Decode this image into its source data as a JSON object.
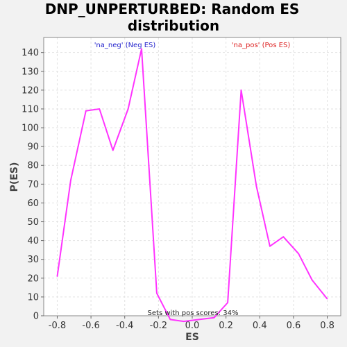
{
  "chart_data": {
    "type": "line",
    "title_line1": "DNP_UNPERTURBED: Random ES",
    "title_line2": "distribution",
    "xlabel": "ES",
    "ylabel": "P(ES)",
    "xlim": [
      -0.88,
      0.88
    ],
    "ylim": [
      0,
      148
    ],
    "x_ticks": [
      -0.8,
      -0.6,
      -0.4,
      -0.2,
      0.0,
      0.2,
      0.4,
      0.6,
      0.8
    ],
    "x_tick_labels": [
      "-0.8",
      "-0.6",
      "-0.4",
      "-0.2",
      "0.0",
      "0.2",
      "0.4",
      "0.6",
      "0.8"
    ],
    "y_ticks": [
      0,
      10,
      20,
      30,
      40,
      50,
      60,
      70,
      80,
      90,
      100,
      110,
      120,
      130,
      140
    ],
    "y_tick_labels": [
      "0",
      "10",
      "20",
      "30",
      "40",
      "50",
      "60",
      "70",
      "80",
      "90",
      "100",
      "110",
      "120",
      "130",
      "140"
    ],
    "grid": true,
    "series": [
      {
        "color": "#ff33ff",
        "x": [
          -0.8,
          -0.72,
          -0.63,
          -0.55,
          -0.47,
          -0.38,
          -0.3,
          -0.21,
          -0.13,
          -0.05,
          0.04,
          0.13,
          0.21,
          0.29,
          0.38,
          0.46,
          0.54,
          0.63,
          0.71,
          0.8
        ],
        "y": [
          21,
          72,
          109,
          110,
          88,
          110,
          142,
          12,
          -2,
          -3,
          -2,
          -1,
          7,
          120,
          69,
          37,
          42,
          33,
          19,
          9
        ]
      }
    ],
    "annotations": {
      "neg": {
        "text": "'na_neg' (Neg ES)",
        "color": "#2222cc"
      },
      "pos": {
        "text": "'na_pos' (Pos ES)",
        "color": "#dd2222"
      },
      "footer": {
        "text": "Sets with pos scores: 34%",
        "color": "#222222"
      }
    },
    "colors": {
      "line": "#ff33ff",
      "grid": "#e2e2e2",
      "plot_bg": "#ffffff",
      "frame": "#888888"
    }
  }
}
